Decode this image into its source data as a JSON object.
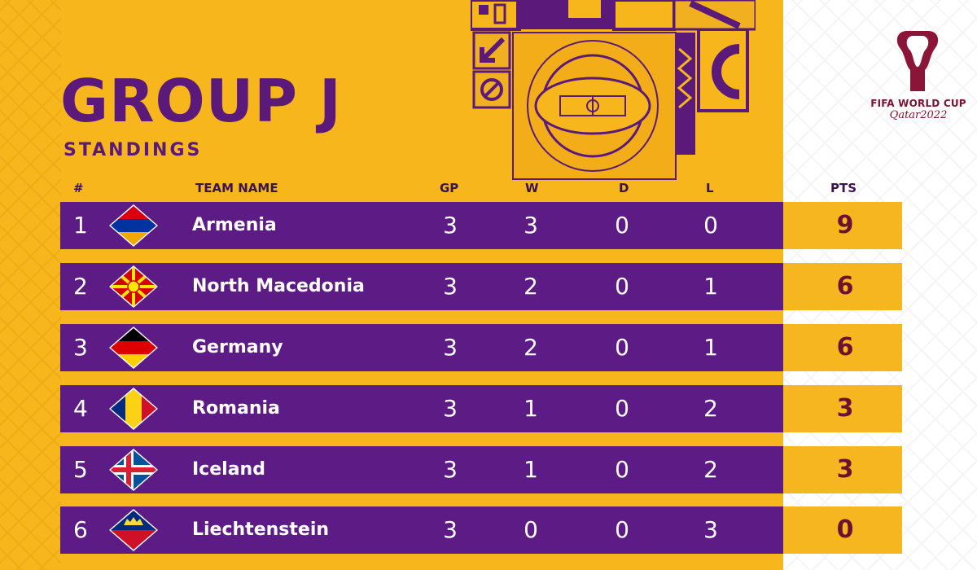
{
  "title": "GROUP J",
  "subtitle": "STANDINGS",
  "logo": {
    "title": "FIFA WORLD CUP",
    "sub": "Qatar2022",
    "icon": "trophy-icon"
  },
  "headers": {
    "rank": "#",
    "team": "TEAM NAME",
    "gp": "GP",
    "w": "W",
    "d": "D",
    "l": "L",
    "pts": "PTS"
  },
  "colors": {
    "background": "#f7b61c",
    "row": "#5d1b85",
    "points_cell": "#f6b61f",
    "title": "#5b1a7a",
    "points_text": "#6a1230"
  },
  "teams": [
    {
      "rank": "1",
      "name": "Armenia",
      "gp": "3",
      "w": "3",
      "d": "0",
      "l": "0",
      "pts": "9",
      "flag": "armenia-flag-icon"
    },
    {
      "rank": "2",
      "name": "North Macedonia",
      "gp": "3",
      "w": "2",
      "d": "0",
      "l": "1",
      "pts": "6",
      "flag": "north-macedonia-flag-icon"
    },
    {
      "rank": "3",
      "name": "Germany",
      "gp": "3",
      "w": "2",
      "d": "0",
      "l": "1",
      "pts": "6",
      "flag": "germany-flag-icon"
    },
    {
      "rank": "4",
      "name": "Romania",
      "gp": "3",
      "w": "1",
      "d": "0",
      "l": "2",
      "pts": "3",
      "flag": "romania-flag-icon"
    },
    {
      "rank": "5",
      "name": "Iceland",
      "gp": "3",
      "w": "1",
      "d": "0",
      "l": "2",
      "pts": "3",
      "flag": "iceland-flag-icon"
    },
    {
      "rank": "6",
      "name": "Liechtenstein",
      "gp": "3",
      "w": "0",
      "d": "0",
      "l": "3",
      "pts": "0",
      "flag": "liechtenstein-flag-icon"
    }
  ]
}
